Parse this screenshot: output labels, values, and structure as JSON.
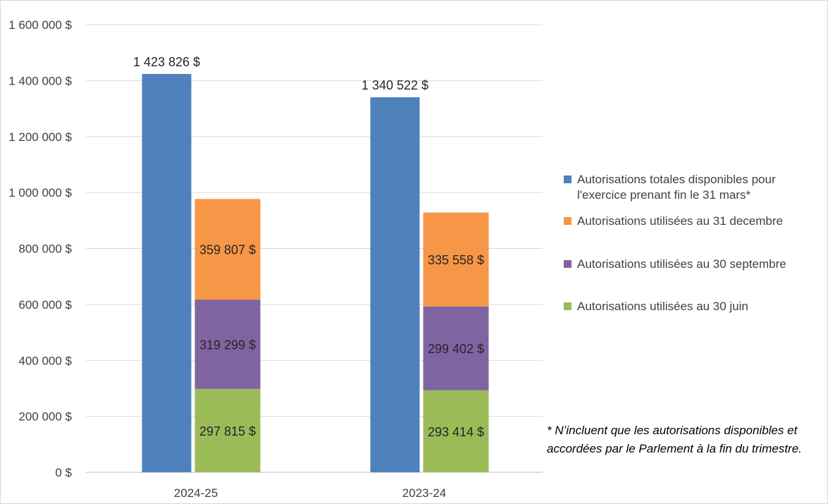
{
  "chart_data": {
    "type": "bar",
    "stacked_groups": true,
    "categories": [
      "2024-25",
      "2023-24"
    ],
    "ylim": [
      0,
      1600000
    ],
    "yticks": [
      0,
      200000,
      400000,
      600000,
      800000,
      1000000,
      1200000,
      1400000,
      1600000
    ],
    "ytick_labels": [
      "0 $",
      "200 000 $",
      "400 000 $",
      "600 000 $",
      "800 000 $",
      "1 000 000 $",
      "1 200 000 $",
      "1 400 000 $",
      "1 600 000 $"
    ],
    "grid": true,
    "legend_position": "right",
    "series": [
      {
        "name": "Autorisations totales disponibles pour l'exercice prenant fin le 31 mars*",
        "color": "#4f81bd",
        "stack": "total",
        "values": [
          1423826,
          1340522
        ],
        "labels": [
          "1 423 826 $",
          "1 340 522 $"
        ]
      },
      {
        "name": "Autorisations utilisées au 30 juin",
        "color": "#9bbb59",
        "stack": "used",
        "values": [
          297815,
          293414
        ],
        "labels": [
          "297 815 $",
          "293 414 $"
        ]
      },
      {
        "name": "Autorisations utilisées au 30 septembre",
        "color": "#8064a2",
        "stack": "used",
        "values": [
          319299,
          299402
        ],
        "labels": [
          "319 299 $",
          "299 402 $"
        ]
      },
      {
        "name": "Autorisations utilisées au 31 decembre",
        "color": "#f79646",
        "stack": "used",
        "values": [
          359807,
          335558
        ],
        "labels": [
          "359 807 $",
          "335 558 $"
        ]
      }
    ],
    "legend_order": [
      0,
      3,
      2,
      1
    ]
  },
  "footnote": "* N’incluent que les autorisations disponibles et accordées par le Parlement à la fin du trimestre."
}
